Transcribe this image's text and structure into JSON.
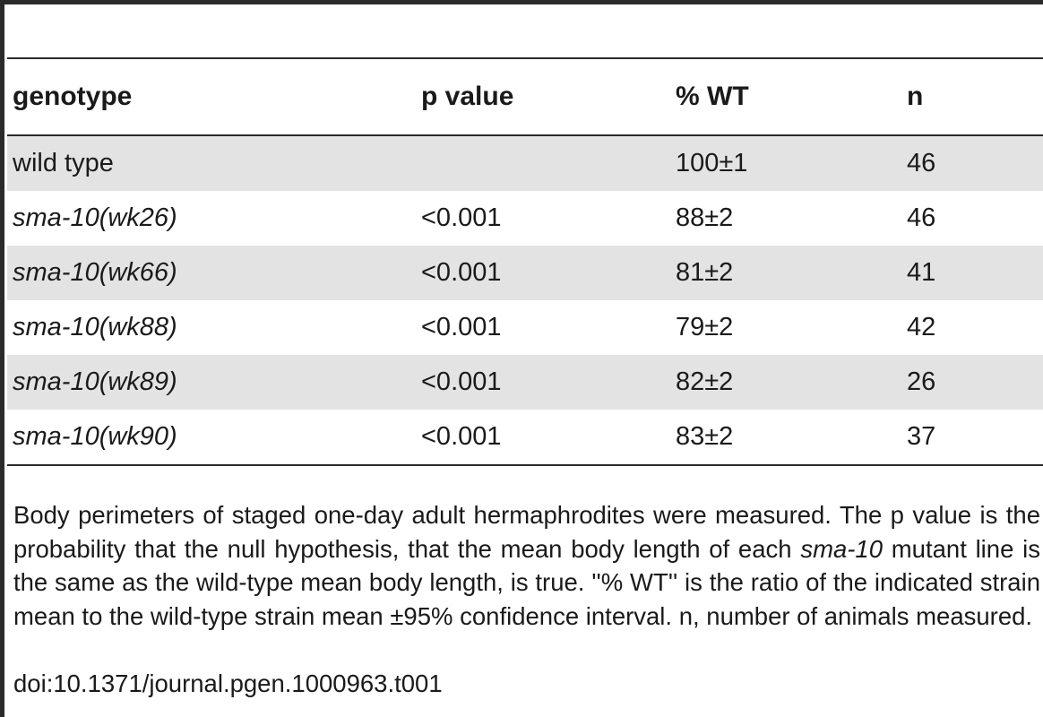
{
  "table": {
    "headers": {
      "genotype": "genotype",
      "p_value": "p value",
      "pct_wt": "% WT",
      "n": "n"
    },
    "rows": [
      {
        "genotype": "wild type",
        "p_value": "",
        "pct_wt": "100±1",
        "n": "46"
      },
      {
        "genotype": "sma-10(wk26)",
        "p_value": "<0.001",
        "pct_wt": "88±2",
        "n": "46"
      },
      {
        "genotype": "sma-10(wk66)",
        "p_value": "<0.001",
        "pct_wt": "81±2",
        "n": "41"
      },
      {
        "genotype": "sma-10(wk88)",
        "p_value": "<0.001",
        "pct_wt": "79±2",
        "n": "42"
      },
      {
        "genotype": "sma-10(wk89)",
        "p_value": "<0.001",
        "pct_wt": "82±2",
        "n": "26"
      },
      {
        "genotype": "sma-10(wk90)",
        "p_value": "<0.001",
        "pct_wt": "83±2",
        "n": "37"
      }
    ]
  },
  "footnote": {
    "part1": "Body perimeters of staged one-day adult hermaphrodites were measured. The p value is the probability that the null hypothesis, that the mean body length of each ",
    "italic_term": "sma-10",
    "part2": " mutant line is the same as the wild-type mean body length, is true. ''% WT'' is the ratio of the indicated strain mean to the wild-type strain mean ±95% confidence interval. n, number of animals measured.",
    "doi": "doi:10.1371/journal.pgen.1000963.t001"
  }
}
